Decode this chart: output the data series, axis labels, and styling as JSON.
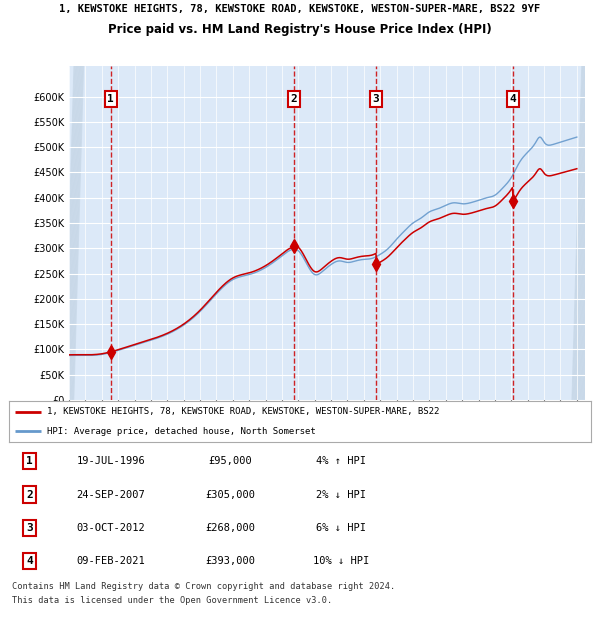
{
  "title_line1": "1, KEWSTOKE HEIGHTS, 78, KEWSTOKE ROAD, KEWSTOKE, WESTON-SUPER-MARE, BS22 9YF",
  "title_line2": "Price paid vs. HM Land Registry's House Price Index (HPI)",
  "legend_label_red": "1, KEWSTOKE HEIGHTS, 78, KEWSTOKE ROAD, KEWSTOKE, WESTON-SUPER-MARE, BS22",
  "legend_label_blue": "HPI: Average price, detached house, North Somerset",
  "transactions": [
    {
      "num": 1,
      "date": "19-JUL-1996",
      "price": 95000,
      "hpi_pct": "4%",
      "hpi_dir": "↑"
    },
    {
      "num": 2,
      "date": "24-SEP-2007",
      "price": 305000,
      "hpi_pct": "2%",
      "hpi_dir": "↓"
    },
    {
      "num": 3,
      "date": "03-OCT-2012",
      "price": 268000,
      "hpi_pct": "6%",
      "hpi_dir": "↓"
    },
    {
      "num": 4,
      "date": "09-FEB-2021",
      "price": 393000,
      "hpi_pct": "10%",
      "hpi_dir": "↓"
    }
  ],
  "footer_line1": "Contains HM Land Registry data © Crown copyright and database right 2024.",
  "footer_line2": "This data is licensed under the Open Government Licence v3.0.",
  "ylim": [
    0,
    660000
  ],
  "yticks": [
    0,
    50000,
    100000,
    150000,
    200000,
    250000,
    300000,
    350000,
    400000,
    450000,
    500000,
    550000,
    600000
  ],
  "bg_color": "#dce9f8",
  "grid_color": "#ffffff",
  "red_color": "#cc0000",
  "blue_color": "#6699cc",
  "sale_dates_decimal": [
    1996.55,
    2007.73,
    2012.75,
    2021.11
  ],
  "sale_prices": [
    95000,
    305000,
    268000,
    393000
  ],
  "hpi_keypoints_x": [
    1994.0,
    1995.0,
    1996.0,
    1997.0,
    1998.0,
    1999.0,
    2000.0,
    2001.0,
    2002.0,
    2003.0,
    2004.0,
    2005.0,
    2006.0,
    2007.0,
    2007.75,
    2008.0,
    2008.5,
    2009.0,
    2009.5,
    2010.0,
    2010.5,
    2011.0,
    2011.5,
    2012.0,
    2012.5,
    2013.0,
    2013.5,
    2014.0,
    2014.5,
    2015.0,
    2015.5,
    2016.0,
    2016.5,
    2017.0,
    2017.5,
    2018.0,
    2018.5,
    2019.0,
    2019.5,
    2020.0,
    2020.5,
    2021.0,
    2021.5,
    2022.0,
    2022.5,
    2022.75,
    2023.0,
    2023.5,
    2024.0,
    2024.5,
    2025.0
  ],
  "hpi_keypoints_y": [
    88000,
    88000,
    90000,
    98000,
    108000,
    118000,
    130000,
    148000,
    175000,
    210000,
    238000,
    248000,
    262000,
    285000,
    298000,
    295000,
    270000,
    248000,
    255000,
    268000,
    275000,
    272000,
    275000,
    278000,
    280000,
    288000,
    300000,
    318000,
    335000,
    350000,
    360000,
    372000,
    378000,
    385000,
    390000,
    388000,
    390000,
    395000,
    400000,
    405000,
    420000,
    440000,
    470000,
    490000,
    510000,
    520000,
    510000,
    505000,
    510000,
    515000,
    520000
  ],
  "xlim_left": 1994.0,
  "xlim_right": 2025.5
}
